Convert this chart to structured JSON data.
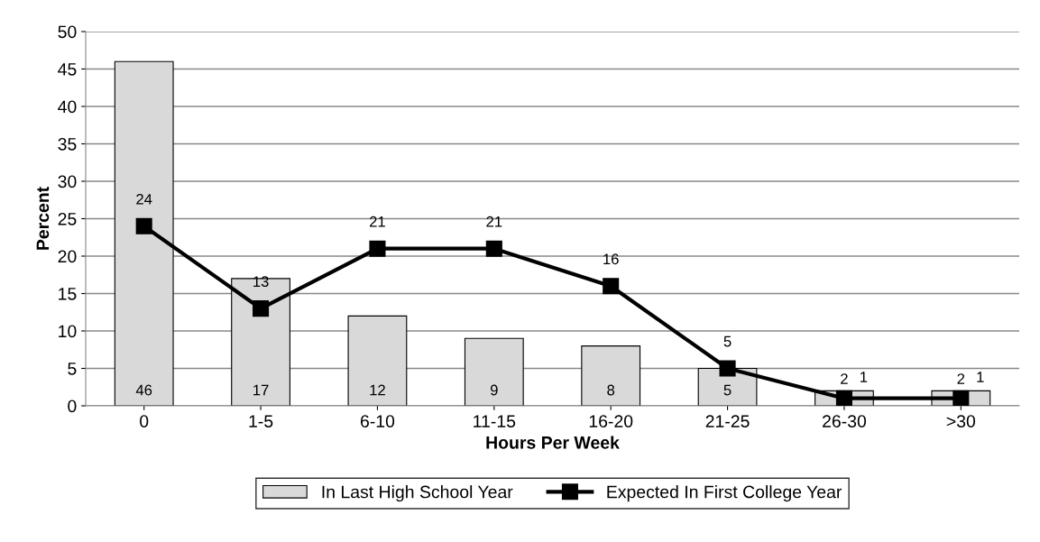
{
  "chart_data": {
    "type": "bar",
    "xlabel": "Hours Per Week",
    "ylabel": "Percent",
    "categories": [
      "0",
      "1-5",
      "6-10",
      "11-15",
      "16-20",
      "21-25",
      "26-30",
      ">30"
    ],
    "series": [
      {
        "name": "In Last High School Year",
        "color": "#d9d9d9",
        "values": [
          46,
          17,
          12,
          9,
          8,
          5,
          2,
          2
        ]
      },
      {
        "name": "Expected In First College Year",
        "type": "line",
        "color": "#000000",
        "marker": "square",
        "line_style": "solid",
        "values": [
          24,
          13,
          21,
          21,
          16,
          5,
          1,
          1
        ]
      }
    ],
    "ylim": [
      0,
      50
    ],
    "yticks": [
      0,
      5,
      10,
      15,
      20,
      25,
      30,
      35,
      40,
      45,
      50
    ],
    "grid": "y",
    "legend": "bottom",
    "data_labels": true
  }
}
